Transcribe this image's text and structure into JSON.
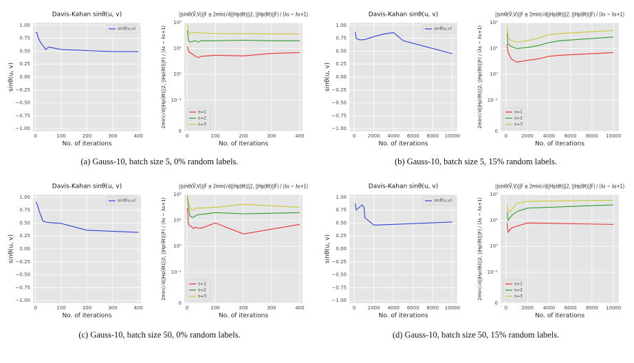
{
  "chart_data": [
    {
      "type": "line",
      "title": "Davis-Kahan sinθ(u, v)",
      "xlabel": "No. of iterations",
      "ylabel": "sinθ(u, v)",
      "x": [
        1,
        5,
        10,
        20,
        30,
        40,
        50,
        100,
        200,
        300,
        400
      ],
      "series": [
        {
          "name": "sinθ(u,v)",
          "color": "#2f3fd8",
          "values": [
            0.85,
            0.86,
            0.76,
            0.66,
            0.6,
            0.53,
            0.58,
            0.53,
            0.51,
            0.49,
            0.49
          ]
        }
      ],
      "xlim": [
        -10,
        410
      ],
      "xticks": [
        0,
        100,
        200,
        300,
        400
      ],
      "ylim": [
        -1.05,
        1.05
      ],
      "yticks": [
        {
          "value": 1,
          "label": "1.00"
        },
        0.75,
        {
          "value": 0.5,
          "label": "0.50"
        },
        0.25,
        {
          "value": 0,
          "label": "0.00"
        },
        {
          "value": -0.25,
          "label": "−0.25"
        },
        {
          "value": -0.5,
          "label": "−0.50"
        },
        {
          "value": -0.75,
          "label": "−0.75"
        },
        {
          "value": -1,
          "label": "−1.00"
        }
      ],
      "yscale": "linear",
      "grid": true,
      "legend": "upper right"
    },
    {
      "type": "line",
      "title": "||sinΘ(Ṽ,V)||F ≤ 2min(√d||Hp(θt)||2, ||Hp(θt)||F) / (λs − λs+1)",
      "xlabel": "No. of iterations",
      "ylabel": "2min(√d||Hp(θt)||2, ||Hp(θt)||F) / (λs − λs+1)",
      "x": [
        1,
        5,
        10,
        20,
        30,
        40,
        50,
        100,
        200,
        300,
        400
      ],
      "series": [
        {
          "name": "s=1",
          "color": "#e8312c",
          "values": [
            12,
            8,
            7,
            6,
            5,
            4.5,
            5,
            5.5,
            5.2,
            6.5,
            7
          ]
        },
        {
          "name": "s=2",
          "color": "#2e9a2e",
          "values": [
            50,
            20,
            18,
            19,
            20,
            18,
            20,
            20,
            21,
            20,
            20
          ]
        },
        {
          "name": "s=3",
          "color": "#c9c733",
          "values": [
            90,
            40,
            38,
            40,
            42,
            42,
            40,
            38,
            38,
            37,
            37
          ]
        }
      ],
      "xlim": [
        -10,
        410
      ],
      "xticks": [
        0,
        100,
        200,
        300,
        400
      ],
      "ylim": [
        0,
        100
      ],
      "yticks": [
        0,
        {
          "value": 0.1,
          "label": "10⁻¹"
        },
        {
          "value": 1,
          "label": "10⁰"
        },
        {
          "value": 10,
          "label": "10¹"
        },
        {
          "value": 100,
          "label": "10²"
        }
      ],
      "yscale": "symlog",
      "grid": true,
      "legend": "lower left"
    },
    {
      "type": "line",
      "title": "Davis-Kahan sinθ(u, v)",
      "xlabel": "No. of iterations",
      "ylabel": "sinθ(u, v)",
      "x": [
        100,
        200,
        500,
        1000,
        2000,
        3000,
        4000,
        5000,
        10000
      ],
      "series": [
        {
          "name": "sinθ(u,v)",
          "color": "#2f3fd8",
          "values": [
            0.87,
            0.75,
            0.72,
            0.72,
            0.78,
            0.83,
            0.86,
            0.7,
            0.45
          ]
        }
      ],
      "xlim": [
        -500,
        10500
      ],
      "xticks": [
        0,
        2000,
        4000,
        6000,
        8000,
        10000
      ],
      "ylim": [
        -1.05,
        1.05
      ],
      "yticks": [
        {
          "value": 1,
          "label": "1.00"
        },
        0.75,
        {
          "value": 0.5,
          "label": "0.50"
        },
        0.25,
        {
          "value": 0,
          "label": "0.00"
        },
        {
          "value": -0.25,
          "label": "−0.25"
        },
        {
          "value": -0.5,
          "label": "−0.50"
        },
        {
          "value": -0.75,
          "label": "−0.75"
        },
        {
          "value": -1,
          "label": "−1.00"
        }
      ],
      "yscale": "linear",
      "grid": true,
      "legend": "upper right"
    },
    {
      "type": "line",
      "title": "||sinΘ(Ṽ,V)||F ≤ 2min(√d||Hp(θt)||2, ||Hp(θt)||F) / (λs − λs+1)",
      "xlabel": "No. of iterations",
      "ylabel": "2min(√d||Hp(θt)||2, ||Hp(θt)||F) / (λs − λs+1)",
      "x": [
        100,
        200,
        500,
        1000,
        2000,
        3000,
        4000,
        5000,
        10000
      ],
      "series": [
        {
          "name": "s=1",
          "color": "#e8312c",
          "values": [
            15,
            7,
            4,
            3,
            3.5,
            4,
            5,
            5.5,
            7
          ]
        },
        {
          "name": "s=2",
          "color": "#2e9a2e",
          "values": [
            40,
            15,
            12,
            10,
            11,
            13,
            17,
            20,
            28
          ]
        },
        {
          "name": "s=3",
          "color": "#c9c733",
          "values": [
            80,
            25,
            20,
            18,
            20,
            25,
            35,
            38,
            50
          ]
        }
      ],
      "xlim": [
        -500,
        10500
      ],
      "xticks": [
        0,
        2000,
        4000,
        6000,
        8000,
        10000
      ],
      "ylim": [
        0,
        100
      ],
      "yticks": [
        0,
        {
          "value": 0.1,
          "label": "10⁻¹"
        },
        {
          "value": 1,
          "label": "10⁰"
        },
        {
          "value": 10,
          "label": "10¹"
        },
        {
          "value": 100,
          "label": "10²"
        }
      ],
      "yscale": "symlog",
      "grid": true,
      "legend": "lower left"
    },
    {
      "type": "line",
      "title": "Davis-Kahan sinθ(u, v)",
      "xlabel": "No. of iterations",
      "ylabel": "sinθ(u, v)",
      "x": [
        1,
        5,
        10,
        15,
        20,
        25,
        30,
        40,
        50,
        100,
        200,
        400
      ],
      "series": [
        {
          "name": "sinθ(u,v)",
          "color": "#2f3fd8",
          "values": [
            0.9,
            0.88,
            0.8,
            0.72,
            0.65,
            0.58,
            0.53,
            0.52,
            0.51,
            0.49,
            0.36,
            0.32
          ]
        }
      ],
      "xlim": [
        -10,
        410
      ],
      "xticks": [
        0,
        100,
        200,
        300,
        400
      ],
      "ylim": [
        -1.05,
        1.05
      ],
      "yticks": [
        {
          "value": 1,
          "label": "1.00"
        },
        0.75,
        {
          "value": 0.5,
          "label": "0.50"
        },
        0.25,
        {
          "value": 0,
          "label": "0.00"
        },
        {
          "value": -0.25,
          "label": "−0.25"
        },
        {
          "value": -0.5,
          "label": "−0.50"
        },
        {
          "value": -0.75,
          "label": "−0.75"
        },
        {
          "value": -1,
          "label": "−1.00"
        }
      ],
      "yscale": "linear",
      "grid": true,
      "legend": "upper right"
    },
    {
      "type": "line",
      "title": "||sinΘ(Ṽ,V)||F ≤ 2min(√d||Hp(θt)||2, ||Hp(θt)||F) / (λs − λs+1)",
      "xlabel": "No. of iterations",
      "ylabel": "2min(√d||Hp(θt)||2, ||Hp(θt)||F) / (λs − λs+1)",
      "x": [
        1,
        5,
        10,
        15,
        20,
        25,
        30,
        40,
        50,
        100,
        200,
        400
      ],
      "series": [
        {
          "name": "s=1",
          "color": "#e8312c",
          "values": [
            30,
            7,
            6,
            6,
            5,
            5,
            5.5,
            5,
            5,
            8,
            3,
            7
          ]
        },
        {
          "name": "s=2",
          "color": "#2e9a2e",
          "values": [
            80,
            30,
            15,
            14,
            13,
            14,
            15,
            17,
            17,
            20,
            18,
            20
          ]
        },
        {
          "name": "s=3",
          "color": "#c9c733",
          "values": [
            100,
            50,
            30,
            25,
            25,
            27,
            30,
            30,
            30,
            32,
            42,
            32
          ]
        }
      ],
      "xlim": [
        -10,
        410
      ],
      "xticks": [
        0,
        100,
        200,
        300,
        400
      ],
      "ylim": [
        0,
        100
      ],
      "yticks": [
        0,
        {
          "value": 0.1,
          "label": "10⁻¹"
        },
        {
          "value": 1,
          "label": "10⁰"
        },
        {
          "value": 10,
          "label": "10¹"
        },
        {
          "value": 100,
          "label": "10²"
        }
      ],
      "yscale": "symlog",
      "grid": true,
      "legend": "lower left"
    },
    {
      "type": "line",
      "title": "Davis-Kahan sinθ(u, v)",
      "xlabel": "No. of iterations",
      "ylabel": "sinθ(u, v)",
      "x": [
        100,
        200,
        800,
        1000,
        1100,
        2000,
        10000
      ],
      "series": [
        {
          "name": "sinθ(u,v)",
          "color": "#2f3fd8",
          "values": [
            0.88,
            0.75,
            0.85,
            0.8,
            0.6,
            0.46,
            0.52
          ]
        }
      ],
      "xlim": [
        -500,
        10500
      ],
      "xticks": [
        0,
        2000,
        4000,
        6000,
        8000,
        10000
      ],
      "ylim": [
        -1.05,
        1.05
      ],
      "yticks": [
        {
          "value": 1,
          "label": "1.00"
        },
        0.75,
        {
          "value": 0.5,
          "label": "0.50"
        },
        0.25,
        {
          "value": 0,
          "label": "0.00"
        },
        {
          "value": -0.25,
          "label": "−0.25"
        },
        {
          "value": -0.5,
          "label": "−0.50"
        },
        {
          "value": -0.75,
          "label": "−0.75"
        },
        {
          "value": -1,
          "label": "−1.00"
        }
      ],
      "yscale": "linear",
      "grid": true,
      "legend": "upper right"
    },
    {
      "type": "line",
      "title": "||sinΘ(Ṽ,V)||F ≤ 2min(√d||Hp(θt)||2, ||Hp(θt)||F) / (λs − λs+1)",
      "xlabel": "No. of iterations",
      "ylabel": "2min(√d||Hp(θt)||2, ||Hp(θt)||F) / (λs − λs+1)",
      "x": [
        100,
        200,
        500,
        1000,
        2000,
        10000
      ],
      "series": [
        {
          "name": "s=1",
          "color": "#e8312c",
          "values": [
            8,
            3.5,
            5,
            6,
            8,
            7
          ]
        },
        {
          "name": "s=2",
          "color": "#2e9a2e",
          "values": [
            20,
            10,
            15,
            22,
            30,
            40
          ]
        },
        {
          "name": "s=3",
          "color": "#c9c733",
          "values": [
            40,
            20,
            25,
            45,
            55,
            60
          ]
        }
      ],
      "xlim": [
        -500,
        10500
      ],
      "xticks": [
        0,
        2000,
        4000,
        6000,
        8000,
        10000
      ],
      "ylim": [
        0,
        100
      ],
      "yticks": [
        0,
        {
          "value": 0.1,
          "label": "10⁻¹"
        },
        {
          "value": 1,
          "label": "10⁰"
        },
        {
          "value": 10,
          "label": "10¹"
        },
        {
          "value": 100,
          "label": "10²"
        }
      ],
      "yscale": "symlog",
      "grid": true,
      "legend": "lower left"
    }
  ],
  "captions": [
    "(a) Gauss-10, batch size 5, 0% random labels.",
    "(b) Gauss-10, batch size 5, 15% random labels.",
    "(c) Gauss-10, batch size 50, 0% random labels.",
    "(d) Gauss-10, batch size 50, 15% random labels."
  ]
}
